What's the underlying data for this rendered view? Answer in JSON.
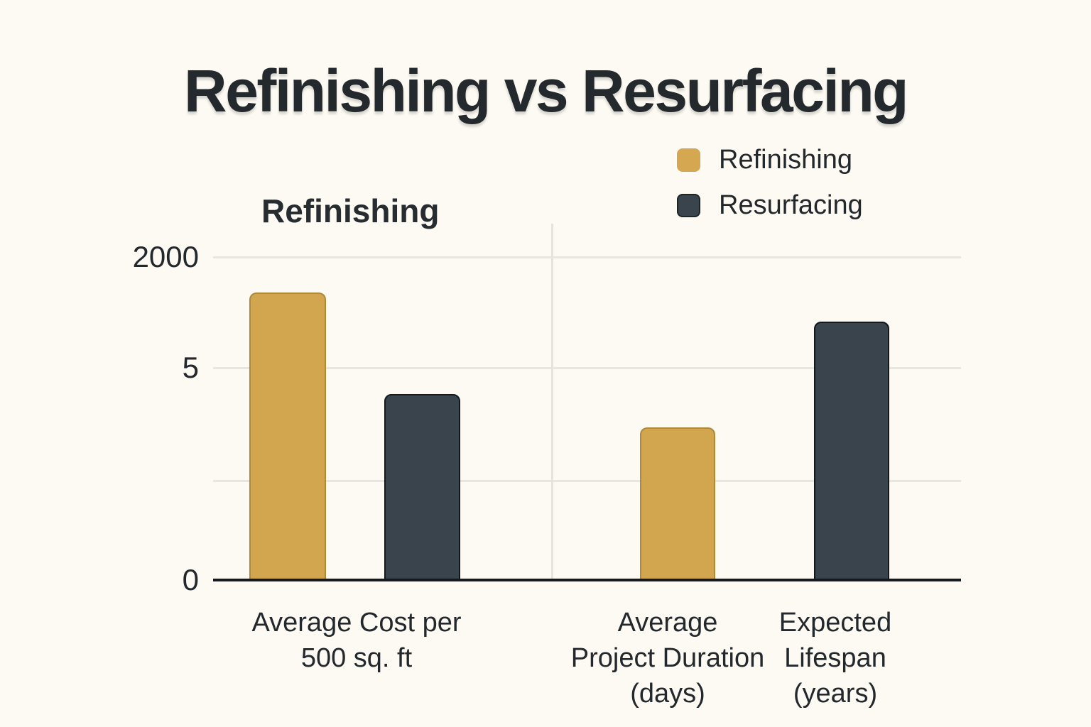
{
  "page": {
    "background_color": "#FCFAF2",
    "text_color": "#23282c",
    "gridline_color": "#e7e6e0",
    "axis_color": "#15191d"
  },
  "title": "Refinishing vs Resurfacing",
  "panel_label": "Refinishing",
  "legend": {
    "items": [
      {
        "label": "Refinishing",
        "color": "#D4A750"
      },
      {
        "label": "Resurfacing",
        "color": "#39444C"
      }
    ]
  },
  "axis": {
    "y_ticks": [
      {
        "label": "2000"
      },
      {
        "label": "5"
      },
      {
        "label": "0"
      }
    ]
  },
  "chart_data": {
    "type": "bar",
    "title": "Refinishing vs Resurfacing",
    "categories": [
      "Average Cost per 500 sq. ft",
      "Average Project Duration (days)",
      "Expected Lifespan (years)"
    ],
    "categories_display": [
      "Average Cost per\n500 sq. ft",
      "Average\nProject Duration\n(days)",
      "Expected\nLifespan\n(years)"
    ],
    "series": [
      {
        "name": "Refinishing",
        "color": "#D2A64F",
        "values": [
          1780,
          945,
          null
        ]
      },
      {
        "name": "Resurfacing",
        "color": "#39444C",
        "values": [
          1150,
          null,
          1600
        ]
      }
    ],
    "y_tick_labels": [
      "2000",
      "5",
      "0"
    ],
    "ylim": [
      0,
      2000
    ],
    "grid": true,
    "legend_position": "top-right"
  }
}
